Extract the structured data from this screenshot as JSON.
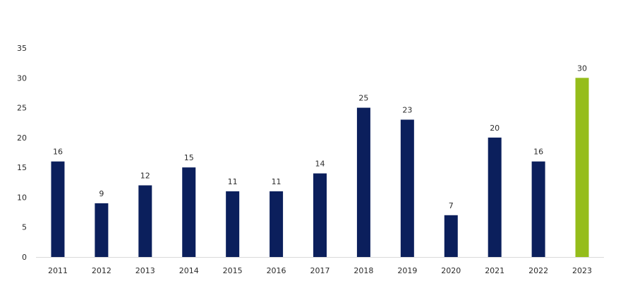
{
  "chart_data": {
    "type": "bar",
    "title": "",
    "xlabel": "",
    "ylabel": "",
    "categories": [
      "2011",
      "2012",
      "2013",
      "2014",
      "2015",
      "2016",
      "2017",
      "2018",
      "2019",
      "2020",
      "2021",
      "2022",
      "2023"
    ],
    "values": [
      16,
      9,
      12,
      15,
      11,
      11,
      14,
      25,
      23,
      7,
      20,
      16,
      30
    ],
    "data_labels": [
      "16",
      "9",
      "12",
      "15",
      "11",
      "11",
      "14",
      "25",
      "23",
      "7",
      "20",
      "16",
      "30"
    ],
    "ylim": [
      0,
      35
    ],
    "yticks": [
      "0",
      "5",
      "10",
      "15",
      "20",
      "25",
      "30",
      "35"
    ],
    "grid": false,
    "legend": "none",
    "colors": {
      "default_bar": "#0b1f5c",
      "highlight_bar": "#95bd1b",
      "axis_line": "#d9d9d9"
    },
    "highlight_category": "2023"
  }
}
